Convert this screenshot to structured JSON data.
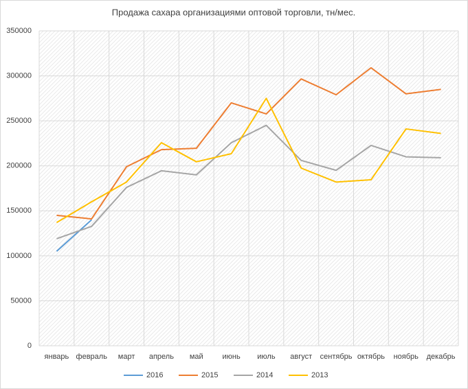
{
  "chart_data": {
    "type": "line",
    "title": "Продажа сахара организациями оптовой торговли, тн/мес.",
    "categories": [
      "январь",
      "февраль",
      "март",
      "апрель",
      "май",
      "июнь",
      "июль",
      "август",
      "сентябрь",
      "октябрь",
      "ноябрь",
      "декабрь"
    ],
    "series": [
      {
        "name": "2016",
        "color": "#5b9bd5",
        "values": [
          105000,
          140000,
          null,
          null,
          null,
          null,
          null,
          null,
          null,
          null,
          null,
          null
        ]
      },
      {
        "name": "2015",
        "color": "#ed7d31",
        "values": [
          145000,
          141000,
          199000,
          218000,
          219500,
          270000,
          257700,
          296600,
          279000,
          309000,
          280000,
          285000
        ]
      },
      {
        "name": "2014",
        "color": "#a5a5a5",
        "values": [
          119000,
          132700,
          176000,
          194500,
          190000,
          225700,
          245000,
          206000,
          195000,
          222700,
          210000,
          209000
        ]
      },
      {
        "name": "2013",
        "color": "#ffc000",
        "values": [
          137000,
          160000,
          182000,
          225700,
          204500,
          213500,
          275000,
          197500,
          182000,
          184500,
          241000,
          236000
        ]
      }
    ],
    "ylim": [
      0,
      350000
    ],
    "yticks": [
      0,
      50000,
      100000,
      150000,
      200000,
      250000,
      300000,
      350000
    ],
    "grid": true,
    "legend": "bottom"
  }
}
